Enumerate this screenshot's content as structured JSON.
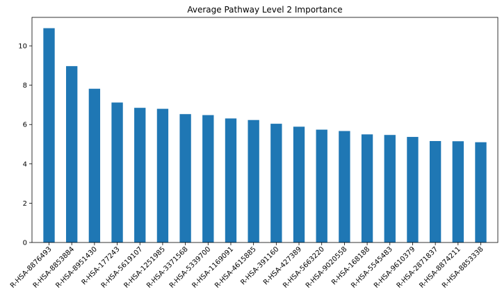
{
  "chart_data": {
    "type": "bar",
    "title": "Average Pathway Level 2 Importance",
    "xlabel": "",
    "ylabel": "",
    "categories": [
      "R-HSA-8876493",
      "R-HSA-8853884",
      "R-HSA-8951430",
      "R-HSA-177243",
      "R-HSA-5619107",
      "R-HSA-1251985",
      "R-HSA-3371568",
      "R-HSA-5339700",
      "R-HSA-1169091",
      "R-HSA-4615885",
      "R-HSA-391160",
      "R-HSA-427389",
      "R-HSA-5663220",
      "R-HSA-9020558",
      "R-HSA-168188",
      "R-HSA-5545483",
      "R-HSA-9610379",
      "R-HSA-2871837",
      "R-HSA-8874211",
      "R-HSA-8853338"
    ],
    "values": [
      10.9,
      8.97,
      7.82,
      7.12,
      6.85,
      6.8,
      6.53,
      6.48,
      6.31,
      6.23,
      6.04,
      5.89,
      5.74,
      5.67,
      5.5,
      5.47,
      5.37,
      5.16,
      5.15,
      5.1
    ],
    "ylim": [
      0,
      11.45
    ],
    "yticks": [
      "0",
      "2",
      "4",
      "6",
      "8",
      "10"
    ],
    "grid": false,
    "legend": "none",
    "bar_color": "#1f77b4"
  }
}
